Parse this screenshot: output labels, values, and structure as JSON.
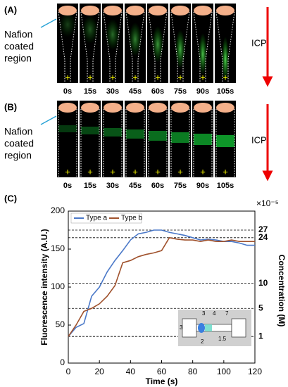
{
  "panels": [
    {
      "label": "(A)",
      "annotation": [
        "Nafion",
        "coated",
        "region"
      ],
      "arrow_label": "ICP",
      "times": [
        "0s",
        "15s",
        "30s",
        "45s",
        "60s",
        "75s",
        "90s",
        "105s"
      ]
    },
    {
      "label": "(B)",
      "annotation": [
        "Nafion",
        "coated",
        "region"
      ],
      "arrow_label": "ICP",
      "times": [
        "0s",
        "15s",
        "30s",
        "45s",
        "60s",
        "75s",
        "90s",
        "105s"
      ]
    }
  ],
  "inset_labels": [
    "3",
    "3",
    "4",
    "7",
    "2",
    "1.5"
  ],
  "chart_data": {
    "type": "line",
    "label": "(C)",
    "xlabel": "Time (s)",
    "ylabel": "Fluorescence intensity (A.U.)",
    "y2label": "Concentration (M)",
    "y2_scale": "×10⁻⁵",
    "x": [
      0,
      5,
      10,
      15,
      20,
      25,
      30,
      35,
      40,
      45,
      50,
      55,
      60,
      65,
      70,
      75,
      80,
      85,
      90,
      95,
      100,
      105,
      110,
      115,
      120
    ],
    "series": [
      {
        "name": "Type a",
        "color": "#4a78c8",
        "values": [
          35,
          47,
          52,
          88,
          100,
          120,
          135,
          148,
          162,
          170,
          172,
          175,
          175,
          172,
          170,
          168,
          165,
          162,
          163,
          162,
          160,
          160,
          158,
          155,
          155
        ]
      },
      {
        "name": "Type b",
        "color": "#a0522d",
        "values": [
          35,
          50,
          68,
          72,
          78,
          88,
          102,
          132,
          135,
          140,
          143,
          145,
          148,
          165,
          163,
          162,
          162,
          160,
          162,
          160,
          160,
          162,
          160,
          160,
          160
        ]
      }
    ],
    "xlim": [
      0,
      120
    ],
    "xticks": [
      0,
      20,
      40,
      60,
      80,
      100,
      120
    ],
    "ylim": [
      0,
      200
    ],
    "yticks": [
      0,
      50,
      100,
      150,
      200
    ],
    "reference_lines": [
      {
        "y": 175,
        "label": "27"
      },
      {
        "y": 165,
        "label": "24"
      },
      {
        "y": 105,
        "label": "10"
      },
      {
        "y": 72,
        "label": "5"
      },
      {
        "y": 35,
        "label": "1"
      }
    ],
    "legend": "upper left"
  }
}
